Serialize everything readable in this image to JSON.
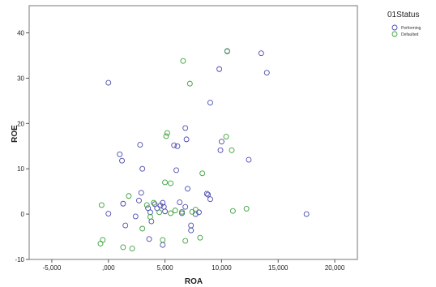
{
  "chart_data": {
    "type": "scatter",
    "xlabel": "ROA",
    "ylabel": "ROE",
    "xlim": [
      -7000,
      22000
    ],
    "ylim": [
      -10,
      46
    ],
    "x_ticks": [
      -5000,
      0,
      5000,
      10000,
      15000,
      20000
    ],
    "x_tick_labels": [
      "-5,000",
      ",000",
      "5,000",
      "10,000",
      "15,000",
      "20,000"
    ],
    "y_ticks": [
      -10,
      0,
      10,
      20,
      30,
      40
    ],
    "y_tick_labels": [
      "-10",
      "0",
      "10",
      "20",
      "30",
      "40"
    ],
    "grid": false,
    "legend": {
      "title": "01Status",
      "placement": "right",
      "entries": [
        {
          "label": "Performing",
          "color": "#4a4ab0"
        },
        {
          "label": "Defaulted",
          "color": "#3aa03a"
        }
      ]
    },
    "series": [
      {
        "name": "Performing",
        "color": "#4a4ab0",
        "points": [
          [
            0,
            29
          ],
          [
            1000,
            13.2
          ],
          [
            1200,
            11.8
          ],
          [
            2800,
            15.3
          ],
          [
            3000,
            10
          ],
          [
            1300,
            2.3
          ],
          [
            1500,
            -2.5
          ],
          [
            2400,
            -0.5
          ],
          [
            2700,
            3
          ],
          [
            2900,
            4.7
          ],
          [
            3500,
            1.3
          ],
          [
            3700,
            0.4
          ],
          [
            3800,
            -1.6
          ],
          [
            4100,
            2.2
          ],
          [
            4300,
            1.3
          ],
          [
            4600,
            1.9
          ],
          [
            4800,
            2.5
          ],
          [
            4900,
            1.6
          ],
          [
            5000,
            0.6
          ],
          [
            5800,
            15.2
          ],
          [
            6000,
            9.7
          ],
          [
            6300,
            2.6
          ],
          [
            6500,
            0.2
          ],
          [
            6800,
            1.6
          ],
          [
            6900,
            16.5
          ],
          [
            6800,
            19
          ],
          [
            7000,
            5.6
          ],
          [
            7300,
            -2.5
          ],
          [
            7300,
            -3.6
          ],
          [
            7700,
            0
          ],
          [
            8000,
            0.4
          ],
          [
            8700,
            4.5
          ],
          [
            8800,
            4.3
          ],
          [
            9000,
            3.3
          ],
          [
            9000,
            24.6
          ],
          [
            9800,
            32
          ],
          [
            9900,
            14.1
          ],
          [
            10000,
            16
          ],
          [
            10500,
            36
          ],
          [
            12400,
            12
          ],
          [
            13500,
            35.5
          ],
          [
            14000,
            31.2
          ],
          [
            17500,
            0
          ],
          [
            3600,
            -5.5
          ],
          [
            4800,
            -6.8
          ],
          [
            0,
            0.1
          ],
          [
            6100,
            15
          ]
        ]
      },
      {
        "name": "Defaulted",
        "color": "#3aa03a",
        "points": [
          [
            -600,
            2
          ],
          [
            -500,
            -5.7
          ],
          [
            -700,
            -6.5
          ],
          [
            1300,
            -7.3
          ],
          [
            2100,
            -7.6
          ],
          [
            1800,
            4
          ],
          [
            3400,
            2
          ],
          [
            3700,
            -0.6
          ],
          [
            4000,
            2.5
          ],
          [
            4500,
            0.4
          ],
          [
            4800,
            -5.7
          ],
          [
            5000,
            7
          ],
          [
            5100,
            17.2
          ],
          [
            5200,
            17.9
          ],
          [
            5500,
            6.8
          ],
          [
            5500,
            0.2
          ],
          [
            5900,
            0.8
          ],
          [
            6500,
            0.5
          ],
          [
            6600,
            33.8
          ],
          [
            6800,
            -5.9
          ],
          [
            7200,
            28.8
          ],
          [
            7400,
            0.5
          ],
          [
            7700,
            1
          ],
          [
            8100,
            -5.2
          ],
          [
            8300,
            9
          ],
          [
            10400,
            17.1
          ],
          [
            10500,
            35.9
          ],
          [
            10900,
            14.1
          ],
          [
            11000,
            0.7
          ],
          [
            12200,
            1.2
          ],
          [
            3000,
            -3.2
          ]
        ]
      }
    ]
  }
}
